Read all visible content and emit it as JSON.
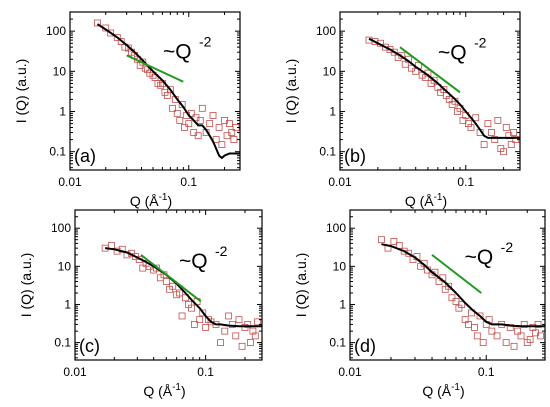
{
  "chart_data": [
    {
      "type": "scatter",
      "panel_label": "(a)",
      "xlabel_main": "Q (Å",
      "xlabel_sup": "-1",
      "xlabel_end": ")",
      "ylabel": "I (Q) (a.u.)",
      "xscale": "log",
      "yscale": "log",
      "xlim": [
        0.01,
        0.27
      ],
      "ylim": [
        0.035,
        300
      ],
      "x_ticks": [
        0.01,
        0.1
      ],
      "x_ticklabels": [
        "0.01",
        "0.1"
      ],
      "y_ticks": [
        0.1,
        1,
        10,
        100
      ],
      "y_ticklabels": [
        "0.1",
        "1",
        "10",
        "100"
      ],
      "annotation": "~Q",
      "annotation_sup": "-2",
      "guide_line": {
        "x": [
          0.03,
          0.09
        ],
        "y": [
          25,
          5.5
        ]
      },
      "points": {
        "x": [
          0.017,
          0.02,
          0.022,
          0.025,
          0.027,
          0.029,
          0.031,
          0.033,
          0.035,
          0.037,
          0.039,
          0.041,
          0.043,
          0.045,
          0.047,
          0.05,
          0.052,
          0.055,
          0.058,
          0.06,
          0.063,
          0.066,
          0.07,
          0.073,
          0.077,
          0.08,
          0.084,
          0.088,
          0.092,
          0.096,
          0.1,
          0.105,
          0.11,
          0.115,
          0.12,
          0.125,
          0.13,
          0.14,
          0.15,
          0.16,
          0.17,
          0.18,
          0.19,
          0.2,
          0.21,
          0.22,
          0.23,
          0.24,
          0.25
        ],
        "y": [
          160,
          120,
          90,
          70,
          55,
          40,
          38,
          30,
          25,
          20,
          14,
          17,
          12,
          11,
          9,
          8,
          7,
          5,
          4.5,
          5,
          3,
          2.5,
          3.5,
          1.2,
          2,
          0.9,
          0.6,
          1.5,
          0.4,
          0.8,
          0.5,
          0.9,
          0.3,
          0.7,
          0.25,
          0.6,
          1.2,
          0.3,
          0.5,
          0.8,
          0.2,
          0.4,
          0.15,
          0.6,
          0.25,
          0.5,
          0.3,
          0.2,
          0.4
        ]
      },
      "fit": {
        "x": [
          0.017,
          0.02,
          0.025,
          0.03,
          0.035,
          0.04,
          0.05,
          0.06,
          0.07,
          0.08,
          0.09,
          0.1,
          0.11,
          0.12,
          0.13,
          0.14,
          0.15,
          0.16,
          0.17,
          0.18,
          0.19,
          0.2,
          0.22,
          0.25,
          0.27
        ],
        "y": [
          150,
          110,
          70,
          45,
          30,
          20,
          10,
          6,
          3.5,
          2,
          1.3,
          0.8,
          0.6,
          0.45,
          0.45,
          0.35,
          0.25,
          0.18,
          0.12,
          0.08,
          0.07,
          0.08,
          0.09,
          0.09,
          0.09
        ]
      }
    },
    {
      "type": "scatter",
      "panel_label": "(b)",
      "xlabel_main": "Q (Å",
      "xlabel_sup": "-1",
      "xlabel_end": ")",
      "ylabel": "I (Q) (a.u.)",
      "xscale": "log",
      "yscale": "log",
      "xlim": [
        0.01,
        0.27
      ],
      "ylim": [
        0.035,
        300
      ],
      "x_ticks": [
        0.01,
        0.1
      ],
      "x_ticklabels": [
        "0.01",
        "0.1"
      ],
      "y_ticks": [
        0.1,
        1,
        10,
        100
      ],
      "y_ticklabels": [
        "0.1",
        "1",
        "10",
        "100"
      ],
      "annotation": "~Q",
      "annotation_sup": "-2",
      "guide_line": {
        "x": [
          0.03,
          0.09
        ],
        "y": [
          40,
          3
        ]
      },
      "points": {
        "x": [
          0.017,
          0.019,
          0.021,
          0.023,
          0.025,
          0.027,
          0.029,
          0.031,
          0.033,
          0.035,
          0.037,
          0.04,
          0.042,
          0.045,
          0.048,
          0.05,
          0.053,
          0.056,
          0.06,
          0.063,
          0.067,
          0.07,
          0.074,
          0.078,
          0.082,
          0.086,
          0.09,
          0.095,
          0.1,
          0.105,
          0.11,
          0.12,
          0.13,
          0.14,
          0.15,
          0.16,
          0.17,
          0.18,
          0.19,
          0.2,
          0.21,
          0.22,
          0.23,
          0.24,
          0.25
        ],
        "y": [
          60,
          55,
          50,
          40,
          35,
          30,
          22,
          25,
          15,
          20,
          12,
          10,
          14,
          8,
          7,
          9,
          5,
          6,
          4,
          3,
          3.5,
          2.5,
          2,
          1.5,
          1.8,
          1,
          1.2,
          0.6,
          0.8,
          0.5,
          0.4,
          0.7,
          0.3,
          0.15,
          0.5,
          0.3,
          0.2,
          0.6,
          0.12,
          0.1,
          0.4,
          0.25,
          0.15,
          0.3,
          0.2
        ]
      },
      "fit": {
        "x": [
          0.017,
          0.02,
          0.025,
          0.03,
          0.035,
          0.04,
          0.05,
          0.06,
          0.07,
          0.08,
          0.09,
          0.1,
          0.11,
          0.12,
          0.13,
          0.14,
          0.15,
          0.17,
          0.2,
          0.23,
          0.27
        ],
        "y": [
          65,
          50,
          35,
          25,
          18,
          13,
          8,
          5,
          3.2,
          2.2,
          1.5,
          1,
          0.7,
          0.5,
          0.35,
          0.25,
          0.22,
          0.22,
          0.22,
          0.22,
          0.22
        ]
      }
    },
    {
      "type": "scatter",
      "panel_label": "(c)",
      "xlabel_main": "Q (Å",
      "xlabel_sup": "-1",
      "xlabel_end": ")",
      "ylabel": "I (Q) (a.u.)",
      "xscale": "log",
      "yscale": "log",
      "xlim": [
        0.01,
        0.27
      ],
      "ylim": [
        0.035,
        300
      ],
      "x_ticks": [
        0.01,
        0.1
      ],
      "x_ticklabels": [
        "0.01",
        "0.1"
      ],
      "y_ticks": [
        0.1,
        1,
        10,
        100
      ],
      "y_ticklabels": [
        "0.1",
        "1",
        "10",
        "100"
      ],
      "annotation": "~Q",
      "annotation_sup": "-2",
      "guide_line": {
        "x": [
          0.032,
          0.092
        ],
        "y": [
          20,
          1.2
        ]
      },
      "points": {
        "x": [
          0.017,
          0.019,
          0.021,
          0.023,
          0.025,
          0.027,
          0.029,
          0.031,
          0.033,
          0.035,
          0.037,
          0.04,
          0.042,
          0.045,
          0.048,
          0.05,
          0.053,
          0.056,
          0.06,
          0.063,
          0.066,
          0.07,
          0.074,
          0.078,
          0.082,
          0.086,
          0.09,
          0.095,
          0.1,
          0.105,
          0.11,
          0.12,
          0.13,
          0.14,
          0.15,
          0.16,
          0.17,
          0.18,
          0.19,
          0.2,
          0.21,
          0.22,
          0.23,
          0.24,
          0.25
        ],
        "y": [
          30,
          35,
          25,
          28,
          20,
          22,
          18,
          15,
          9,
          12,
          10,
          8,
          9,
          5,
          6,
          4,
          2.5,
          3,
          1.8,
          2,
          0.5,
          1.5,
          1,
          0.8,
          0.3,
          1.2,
          0.4,
          0.6,
          0.25,
          0.4,
          0.35,
          0.3,
          0.1,
          0.2,
          0.5,
          0.3,
          0.15,
          0.4,
          0.08,
          0.25,
          0.3,
          0.1,
          0.2,
          0.15,
          0.35
        ]
      },
      "fit": {
        "x": [
          0.017,
          0.02,
          0.025,
          0.03,
          0.035,
          0.04,
          0.05,
          0.06,
          0.07,
          0.08,
          0.09,
          0.1,
          0.11,
          0.12,
          0.13,
          0.15,
          0.18,
          0.21,
          0.25,
          0.27
        ],
        "y": [
          30,
          28,
          23,
          17,
          13,
          10,
          6,
          3.5,
          2,
          1.2,
          0.8,
          0.5,
          0.35,
          0.3,
          0.3,
          0.28,
          0.27,
          0.27,
          0.27,
          0.27
        ]
      }
    },
    {
      "type": "scatter",
      "panel_label": "(d)",
      "xlabel_main": "Q (Å",
      "xlabel_sup": "-1",
      "xlabel_end": ")",
      "ylabel": "I (Q) (a.u.)",
      "xscale": "log",
      "yscale": "log",
      "xlim": [
        0.01,
        0.27
      ],
      "ylim": [
        0.035,
        300
      ],
      "x_ticks": [
        0.01,
        0.1
      ],
      "x_ticklabels": [
        "0.01",
        "0.1"
      ],
      "y_ticks": [
        0.1,
        1,
        10,
        100
      ],
      "y_ticklabels": [
        "0.1",
        "1",
        "10",
        "100"
      ],
      "annotation": "~Q",
      "annotation_sup": "-2",
      "guide_line": {
        "x": [
          0.04,
          0.092
        ],
        "y": [
          20,
          2
        ]
      },
      "points": {
        "x": [
          0.017,
          0.019,
          0.021,
          0.023,
          0.025,
          0.027,
          0.029,
          0.031,
          0.033,
          0.035,
          0.037,
          0.04,
          0.042,
          0.045,
          0.048,
          0.05,
          0.053,
          0.056,
          0.06,
          0.063,
          0.066,
          0.07,
          0.074,
          0.078,
          0.082,
          0.086,
          0.09,
          0.095,
          0.1,
          0.105,
          0.11,
          0.12,
          0.13,
          0.14,
          0.15,
          0.16,
          0.17,
          0.18,
          0.19,
          0.2,
          0.21,
          0.22,
          0.23,
          0.24,
          0.25
        ],
        "y": [
          50,
          30,
          45,
          35,
          25,
          22,
          15,
          18,
          10,
          12,
          8,
          6,
          7,
          4,
          5,
          2.5,
          3,
          1.5,
          1.2,
          0.8,
          1,
          0.4,
          0.3,
          0.6,
          0.25,
          0.15,
          0.5,
          0.1,
          0.3,
          0.4,
          0.2,
          0.15,
          0.3,
          0.1,
          0.25,
          0.08,
          0.2,
          0.15,
          0.3,
          0.1,
          0.12,
          0.25,
          0.18,
          0.3,
          0.15
        ]
      },
      "fit": {
        "x": [
          0.017,
          0.02,
          0.025,
          0.03,
          0.035,
          0.04,
          0.05,
          0.06,
          0.07,
          0.08,
          0.09,
          0.1,
          0.11,
          0.12,
          0.13,
          0.15,
          0.18,
          0.21,
          0.25,
          0.27
        ],
        "y": [
          38,
          34,
          25,
          17,
          11,
          7,
          3.8,
          2,
          1.1,
          0.7,
          0.5,
          0.35,
          0.3,
          0.3,
          0.3,
          0.28,
          0.27,
          0.27,
          0.27,
          0.27
        ]
      }
    }
  ]
}
